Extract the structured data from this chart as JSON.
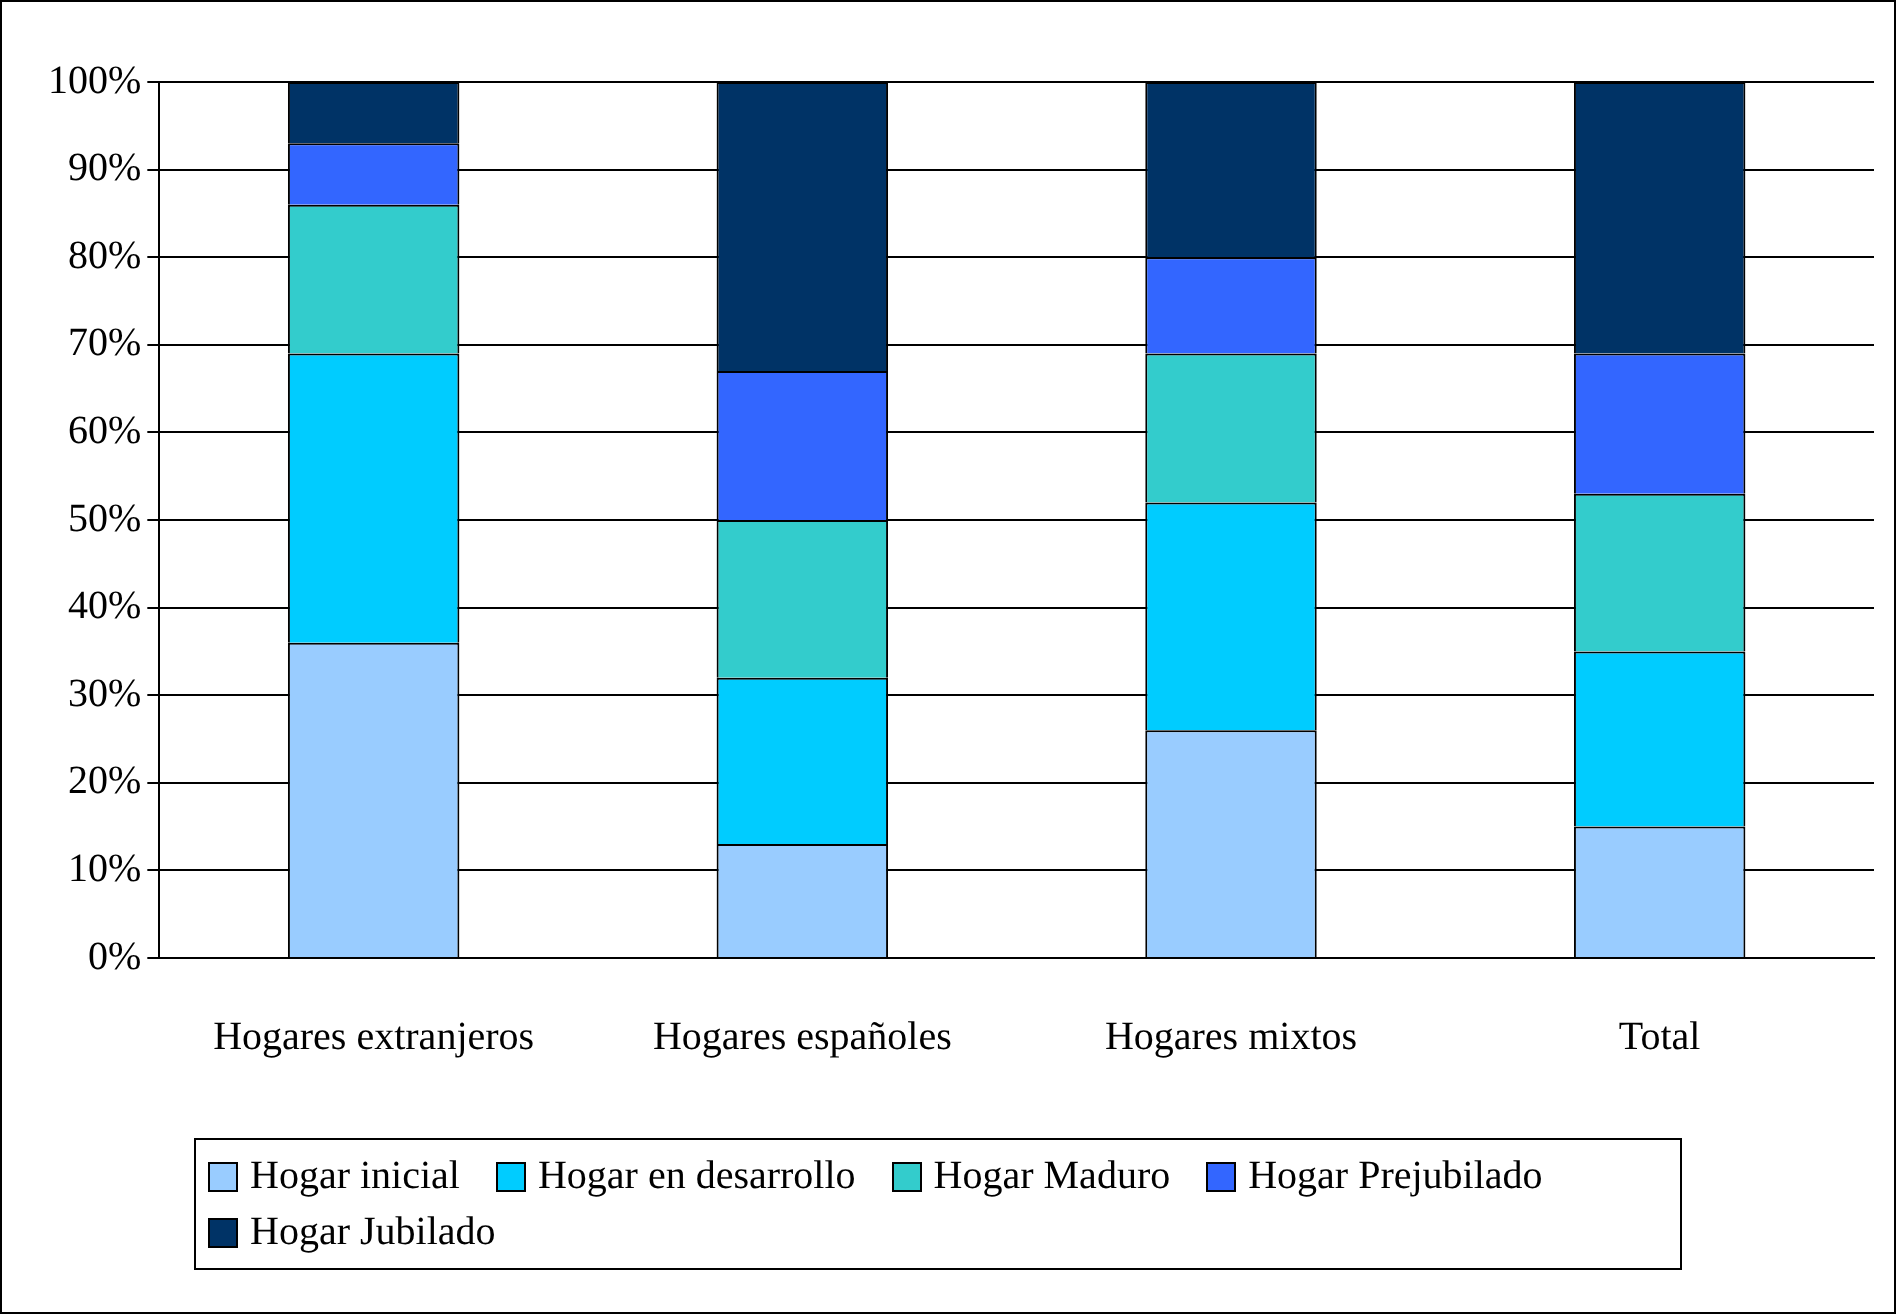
{
  "chart_data": {
    "type": "bar",
    "stacked": true,
    "categories": [
      "Hogares extranjeros",
      "Hogares españoles",
      "Hogares mixtos",
      "Total"
    ],
    "series": [
      {
        "name": "Hogar inicial",
        "color": "#99ccff",
        "values": [
          36,
          13,
          26,
          15
        ]
      },
      {
        "name": "Hogar en desarrollo",
        "color": "#00ccff",
        "values": [
          33,
          19,
          26,
          20
        ]
      },
      {
        "name": "Hogar Maduro",
        "color": "#33cccc",
        "values": [
          17,
          18,
          17,
          18
        ]
      },
      {
        "name": "Hogar Prejubilado",
        "color": "#3366ff",
        "values": [
          7,
          17,
          11,
          16
        ]
      },
      {
        "name": "Hogar Jubilado",
        "color": "#003366",
        "values": [
          7,
          33,
          20,
          31
        ]
      }
    ],
    "ylim": [
      0,
      100
    ],
    "yticks": [
      {
        "value": 0,
        "label": "0%"
      },
      {
        "value": 10,
        "label": "10%"
      },
      {
        "value": 20,
        "label": "20%"
      },
      {
        "value": 30,
        "label": "30%"
      },
      {
        "value": 40,
        "label": "40%"
      },
      {
        "value": 50,
        "label": "50%"
      },
      {
        "value": 60,
        "label": "60%"
      },
      {
        "value": 70,
        "label": "70%"
      },
      {
        "value": 80,
        "label": "80%"
      },
      {
        "value": 90,
        "label": "90%"
      },
      {
        "value": 100,
        "label": "100%"
      }
    ],
    "grid": "y",
    "legend": "bottom"
  }
}
